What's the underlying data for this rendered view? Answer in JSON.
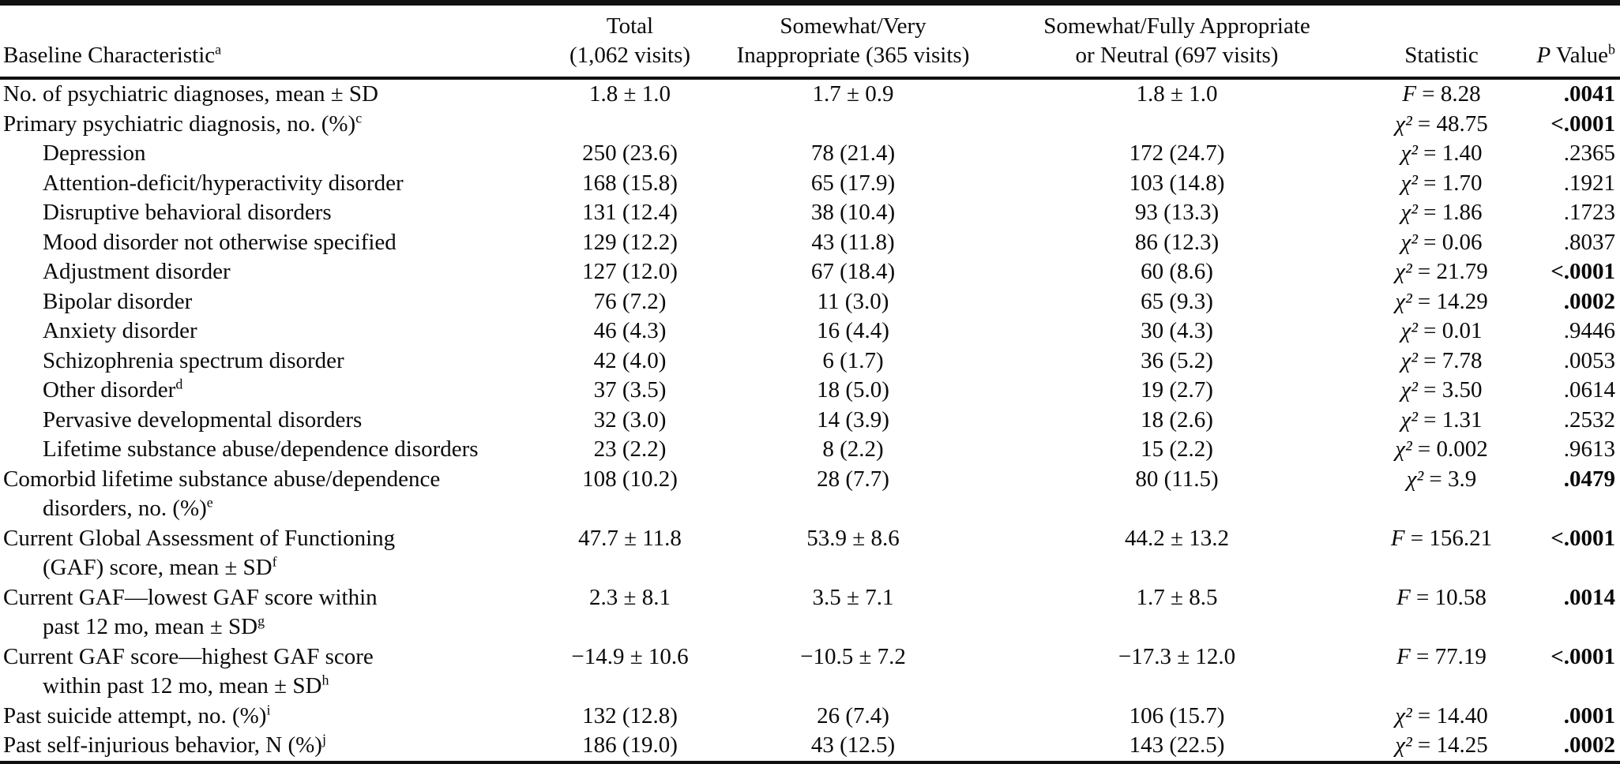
{
  "table": {
    "headers": {
      "characteristic": {
        "label": "Baseline Characteristic",
        "sup": "a"
      },
      "total": {
        "line1": "Total",
        "line2": "(1,062 visits)"
      },
      "inappropriate": {
        "line1": "Somewhat/Very",
        "line2": "Inappropriate (365 visits)"
      },
      "appropriate": {
        "line1": "Somewhat/Fully Appropriate",
        "line2": "or Neutral (697 visits)"
      },
      "statistic": {
        "label": "Statistic"
      },
      "p_value": {
        "italic": "P",
        "label": " Value",
        "sup": "b"
      }
    },
    "rows": [
      {
        "label": "No. of psychiatric diagnoses, mean ± SD",
        "label_sup": "",
        "label2": "",
        "label2_sup": "",
        "indent": false,
        "total": "1.8 ± 1.0",
        "inappropriate": "1.7 ± 0.9",
        "appropriate": "1.8 ± 1.0",
        "stat_sym": "F",
        "stat_rest": " = 8.28",
        "p": ".0041",
        "p_bold": true
      },
      {
        "label": "Primary psychiatric diagnosis, no. (%)",
        "label_sup": "c",
        "label2": "",
        "label2_sup": "",
        "indent": false,
        "total": "",
        "inappropriate": "",
        "appropriate": "",
        "stat_sym": "χ²",
        "stat_rest": " = 48.75",
        "p": "<.0001",
        "p_bold": true
      },
      {
        "label": "Depression",
        "label_sup": "",
        "label2": "",
        "label2_sup": "",
        "indent": true,
        "total": "250 (23.6)",
        "inappropriate": "78 (21.4)",
        "appropriate": "172 (24.7)",
        "stat_sym": "χ²",
        "stat_rest": " = 1.40",
        "p": ".2365",
        "p_bold": false
      },
      {
        "label": "Attention-deficit/hyperactivity disorder",
        "label_sup": "",
        "label2": "",
        "label2_sup": "",
        "indent": true,
        "total": "168 (15.8)",
        "inappropriate": "65 (17.9)",
        "appropriate": "103 (14.8)",
        "stat_sym": "χ²",
        "stat_rest": " = 1.70",
        "p": ".1921",
        "p_bold": false
      },
      {
        "label": "Disruptive behavioral disorders",
        "label_sup": "",
        "label2": "",
        "label2_sup": "",
        "indent": true,
        "total": "131 (12.4)",
        "inappropriate": "38 (10.4)",
        "appropriate": "93 (13.3)",
        "stat_sym": "χ²",
        "stat_rest": " = 1.86",
        "p": ".1723",
        "p_bold": false
      },
      {
        "label": "Mood disorder not otherwise specified",
        "label_sup": "",
        "label2": "",
        "label2_sup": "",
        "indent": true,
        "total": "129 (12.2)",
        "inappropriate": "43 (11.8)",
        "appropriate": "86 (12.3)",
        "stat_sym": "χ²",
        "stat_rest": " = 0.06",
        "p": ".8037",
        "p_bold": false
      },
      {
        "label": "Adjustment disorder",
        "label_sup": "",
        "label2": "",
        "label2_sup": "",
        "indent": true,
        "total": "127 (12.0)",
        "inappropriate": "67 (18.4)",
        "appropriate": "60 (8.6)",
        "stat_sym": "χ²",
        "stat_rest": " = 21.79",
        "p": "<.0001",
        "p_bold": true
      },
      {
        "label": "Bipolar disorder",
        "label_sup": "",
        "label2": "",
        "label2_sup": "",
        "indent": true,
        "total": "76 (7.2)",
        "inappropriate": "11 (3.0)",
        "appropriate": "65 (9.3)",
        "stat_sym": "χ²",
        "stat_rest": " = 14.29",
        "p": ".0002",
        "p_bold": true
      },
      {
        "label": "Anxiety disorder",
        "label_sup": "",
        "label2": "",
        "label2_sup": "",
        "indent": true,
        "total": "46 (4.3)",
        "inappropriate": "16 (4.4)",
        "appropriate": "30 (4.3)",
        "stat_sym": "χ²",
        "stat_rest": " = 0.01",
        "p": ".9446",
        "p_bold": false
      },
      {
        "label": "Schizophrenia spectrum disorder",
        "label_sup": "",
        "label2": "",
        "label2_sup": "",
        "indent": true,
        "total": "42 (4.0)",
        "inappropriate": "6 (1.7)",
        "appropriate": "36 (5.2)",
        "stat_sym": "χ²",
        "stat_rest": " = 7.78",
        "p": ".0053",
        "p_bold": false
      },
      {
        "label": "Other disorder",
        "label_sup": "d",
        "label2": "",
        "label2_sup": "",
        "indent": true,
        "total": "37 (3.5)",
        "inappropriate": "18 (5.0)",
        "appropriate": "19 (2.7)",
        "stat_sym": "χ²",
        "stat_rest": " = 3.50",
        "p": ".0614",
        "p_bold": false
      },
      {
        "label": "Pervasive developmental disorders",
        "label_sup": "",
        "label2": "",
        "label2_sup": "",
        "indent": true,
        "total": "32 (3.0)",
        "inappropriate": "14 (3.9)",
        "appropriate": "18 (2.6)",
        "stat_sym": "χ²",
        "stat_rest": " = 1.31",
        "p": ".2532",
        "p_bold": false
      },
      {
        "label": "Lifetime substance abuse/dependence disorders",
        "label_sup": "",
        "label2": "",
        "label2_sup": "",
        "indent": true,
        "total": "23 (2.2)",
        "inappropriate": "8 (2.2)",
        "appropriate": "15 (2.2)",
        "stat_sym": "χ²",
        "stat_rest": " = 0.002",
        "p": ".9613",
        "p_bold": false
      },
      {
        "label": "Comorbid lifetime substance abuse/dependence",
        "label_sup": "",
        "label2": "disorders, no. (%)",
        "label2_sup": "e",
        "indent": false,
        "total": "108 (10.2)",
        "inappropriate": "28 (7.7)",
        "appropriate": "80 (11.5)",
        "stat_sym": "χ²",
        "stat_rest": " = 3.9",
        "p": ".0479",
        "p_bold": true
      },
      {
        "label": "Current Global Assessment of Functioning",
        "label_sup": "",
        "label2": "(GAF) score, mean ± SD",
        "label2_sup": "f",
        "indent": false,
        "total": "47.7 ± 11.8",
        "inappropriate": "53.9 ± 8.6",
        "appropriate": "44.2 ± 13.2",
        "stat_sym": "F",
        "stat_rest": " = 156.21",
        "p": "<.0001",
        "p_bold": true
      },
      {
        "label": "Current GAF—lowest GAF score within",
        "label_sup": "",
        "label2": "past 12 mo, mean ± SD",
        "label2_sup": "g",
        "indent": false,
        "total": "2.3 ± 8.1",
        "inappropriate": "3.5 ± 7.1",
        "appropriate": "1.7 ± 8.5",
        "stat_sym": "F",
        "stat_rest": " = 10.58",
        "p": ".0014",
        "p_bold": true
      },
      {
        "label": "Current GAF score—highest GAF score",
        "label_sup": "",
        "label2": "within past 12 mo, mean ± SD",
        "label2_sup": "h",
        "indent": false,
        "total": "−14.9 ± 10.6",
        "inappropriate": "−10.5 ± 7.2",
        "appropriate": "−17.3 ± 12.0",
        "stat_sym": "F",
        "stat_rest": " = 77.19",
        "p": "<.0001",
        "p_bold": true
      },
      {
        "label": "Past suicide attempt, no. (%)",
        "label_sup": "i",
        "label2": "",
        "label2_sup": "",
        "indent": false,
        "total": "132 (12.8)",
        "inappropriate": "26 (7.4)",
        "appropriate": "106 (15.7)",
        "stat_sym": "χ²",
        "stat_rest": " = 14.40",
        "p": ".0001",
        "p_bold": true
      },
      {
        "label": "Past self-injurious behavior, N (%)",
        "label_sup": "j",
        "label2": "",
        "label2_sup": "",
        "indent": false,
        "total": "186 (19.0)",
        "inappropriate": "43 (12.5)",
        "appropriate": "143 (22.5)",
        "stat_sym": "χ²",
        "stat_rest": " = 14.25",
        "p": ".0002",
        "p_bold": true
      }
    ]
  }
}
